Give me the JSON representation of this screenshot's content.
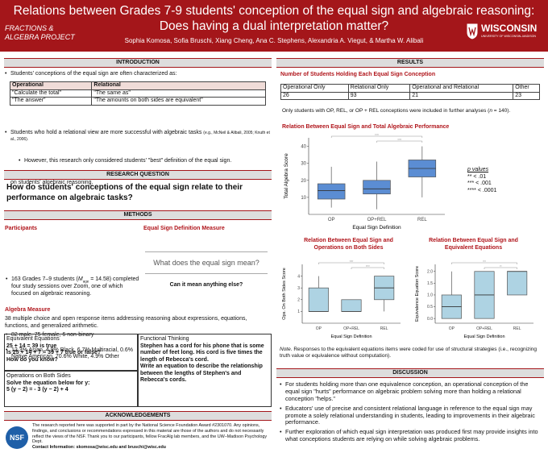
{
  "header": {
    "title_line1": "Relations between Grades 7-9 students' conception of the equal sign and algebraic reasoning:",
    "title_line2": "Does having a dual interpretation matter?",
    "authors": "Sophia Komosa, Sofia Bruschi, Xiang Cheng, Ana C. Stephens, Alexandria A. Viegut, & Martha W. Alibali",
    "logo_left_1": "FRACTIONS &",
    "logo_left_2": "ALGEBRA PROJECT",
    "logo_right": "WISCONSIN",
    "logo_right_sub": "UNIVERSITY OF WISCONSIN–MADISON"
  },
  "introduction": {
    "heading": "INTRODUCTION",
    "bullet1": "Students' conceptions of the equal sign are often characterized as:",
    "table": {
      "headers": [
        "Operational",
        "Relational"
      ],
      "rows": [
        [
          "\"Calculate the total\"",
          "\"The same as\""
        ],
        [
          "\"The answer\"",
          "\"The amounts on both sides are equivalent\""
        ]
      ]
    },
    "bullet2": "Students who hold a relational view are more successful with algebraic tasks",
    "bullet2_citation": "(e.g., McNeil & Alibali, 2005; Knuth et al., 2006).",
    "sub_bullet": "However, this research only considered students' \"best\" definition of the equal sign.",
    "bullet3": "The current study investigates the impact of holding both operational and relational views simultaneously on students' algebraic reasoning."
  },
  "research_question": {
    "heading": "RESEARCH QUESTION",
    "text": "How do students' conceptions of the equal sign relate to their performance on algebraic tasks?"
  },
  "methods": {
    "heading": "METHODS",
    "participants_heading": "Participants",
    "participants_1a": "163 Grades 7–9 students (",
    "participants_1m": "M",
    "participants_1sub": "age",
    "participants_1b": " = 14.58) completed four study sessions over Zoom, one of which focused on algebraic reasoning.",
    "participants_2": "82 male, 75 female, 6 non-binary",
    "participants_3": "12.3% Asian, 4.9% Black, 6.7% Multiracial, 0.6% Native American, 70.6% White, 4.9% Other",
    "measure_heading": "Equal Sign Definition Measure",
    "measure_prompt": "What does the equal sign mean?",
    "measure_caption": "Can it mean anything else?",
    "algebra_heading": "Algebra Measure",
    "algebra_text": "38 multiple choice and open response items addressing reasoning about expressions, equations, functions, and generalized arithmetic.",
    "equivalent": {
      "title": "Equivalent Equations",
      "line1": "25 + 14 = 39 is true",
      "line2": "Is 25 + 14 + 7 = 39 + 7 true or false?",
      "line3": "How do you know?"
    },
    "operations": {
      "title": "Operations on Both Sides",
      "line1": "Solve the equation below for y:",
      "line2": "5 (y − 2) = - 3 (y − 2) + 4"
    },
    "functional": {
      "title": "Functional Thinking",
      "line1": "Stephen has a cord for his phone that is some number of feet long. His cord is five times the length of Rebecca's cord.",
      "line2": "Write an equation to describe the relationship between the lengths of Stephen's and Rebecca's cords."
    }
  },
  "acknowledgements": {
    "heading": "ACKNOWLEDGEMENTS",
    "logo": "NSF",
    "text": "The research reported here was supported in part by the National Science Foundation Award #2301070. Any opinions, findings, and conclusions or recommendations expressed in this material are those of the authors and do not necessarily reflect the views of the NSF. Thank you to our participants, fellow FracAlg lab members, and the UW–Madison Psychology Dept.",
    "contact": "Contact Information: skomosa@wisc.edu and bruschi@wisc.edu"
  },
  "results": {
    "heading": "RESULTS",
    "table_title": "Number of Students Holding Each Equal Sign Conception",
    "table": {
      "headers": [
        "Operational Only",
        "Relational Only",
        "Operational and Relational",
        "Other"
      ],
      "values": [
        26,
        93,
        21,
        23
      ]
    },
    "note_a": "Only students with OP, REL, or OP + REL conceptions were included in further analyses (",
    "note_n": "n",
    "note_b": " = 140).",
    "pvalues_title": "p values",
    "pvalues": [
      "** < .01",
      "*** < .001",
      "**** < .0001"
    ],
    "chart_note_label": "Note",
    "chart_note": ". Responses to the equivalent equations items were coded for use of structural strategies (i.e., recognizing truth value or equivalence without computation)."
  },
  "chart_data": [
    {
      "type": "box",
      "title": "Relation Between Equal Sign and Total Algebraic Performance",
      "y_label": "Total Algebra Score",
      "x_label": "Equal Sign Definition",
      "color": "#5b8dd3",
      "categories": [
        "OP",
        "OP+REL",
        "REL"
      ],
      "boxes": [
        {
          "min": 4,
          "q1": 9,
          "median": 14,
          "q3": 18,
          "max": 28
        },
        {
          "min": 3,
          "q1": 12,
          "median": 15,
          "q3": 20,
          "max": 31
        },
        {
          "min": 10,
          "q1": 22,
          "median": 27,
          "q3": 32,
          "max": 40
        }
      ],
      "ylim": [
        0,
        45
      ],
      "yticks": [
        10,
        20,
        30,
        40
      ],
      "significance": [
        {
          "groups": [
            "OP",
            "REL"
          ],
          "label": "****"
        },
        {
          "groups": [
            "OP+REL",
            "REL"
          ],
          "label": "****"
        }
      ]
    },
    {
      "type": "box",
      "title": "Relation Between Equal Sign and Operations on Both Sides",
      "y_label": "Ops. On Both Sides Score",
      "x_label": "Equal Sign Definition",
      "color": "#aed3e3",
      "categories": [
        "OP",
        "OP+REL",
        "REL"
      ],
      "boxes": [
        {
          "min": 1,
          "q1": 1,
          "median": 1,
          "q3": 3,
          "max": 4
        },
        {
          "min": 1,
          "q1": 1,
          "median": 1,
          "q3": 2,
          "max": 2
        },
        {
          "min": 1,
          "q1": 2,
          "median": 3,
          "q3": 4,
          "max": 4
        }
      ],
      "ylim": [
        0,
        5
      ],
      "yticks": [
        1,
        2,
        3,
        4
      ],
      "significance": [
        {
          "groups": [
            "OP",
            "REL"
          ],
          "label": "****"
        },
        {
          "groups": [
            "OP+REL",
            "REL"
          ],
          "label": "****"
        }
      ]
    },
    {
      "type": "box",
      "title": "Relation Between Equal Sign and Equivalent Equations",
      "y_label": "Equivalence Equation Score",
      "x_label": "Equal Sign Definition",
      "color": "#aed3e3",
      "categories": [
        "OP",
        "OP+REL",
        "REL"
      ],
      "boxes": [
        {
          "min": 0,
          "q1": 0,
          "median": 0.5,
          "q3": 1,
          "max": 2
        },
        {
          "min": 0,
          "q1": 0,
          "median": 1,
          "q3": 2,
          "max": 2
        },
        {
          "min": 1,
          "q1": 1,
          "median": 2,
          "q3": 2,
          "max": 2
        }
      ],
      "ylim": [
        -0.2,
        2.3
      ],
      "yticks": [
        {
          "value": 0,
          "label": "0.0"
        },
        {
          "value": 0.5,
          "label": "0.5"
        },
        {
          "value": 1,
          "label": "1.0"
        },
        {
          "value": 1.5,
          "label": "1.5"
        },
        {
          "value": 2,
          "label": "2.0"
        }
      ],
      "significance": [
        {
          "groups": [
            "OP",
            "REL"
          ],
          "label": "***"
        },
        {
          "groups": [
            "OP+REL",
            "REL"
          ],
          "label": "**"
        }
      ]
    }
  ],
  "discussion": {
    "heading": "DISCUSSION",
    "bullets": [
      "For students holding more than one equivalence conception, an operational conception of the equal sign \"hurts\" performance on algebraic problem solving more than holding a relational conception \"helps.\"",
      "Educators' use of precise and consistent relational language in reference to the equal sign may promote a solely relational understanding in students, leading to improvements in their algebraic performance.",
      "Further exploration of which equal sign interpretation was produced first may provide insights into what conceptions students are relying on while solving algebraic problems."
    ]
  }
}
